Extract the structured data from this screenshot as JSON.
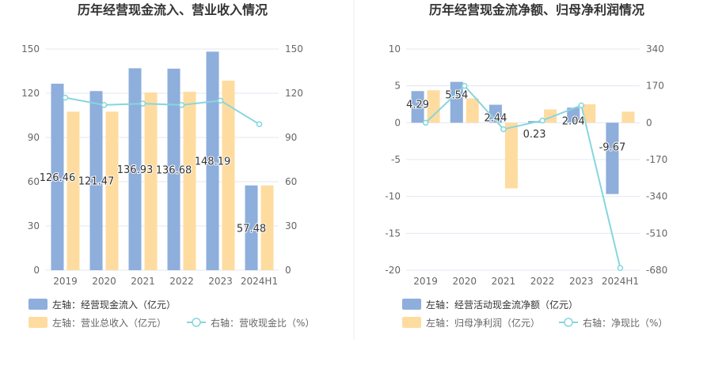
{
  "colors": {
    "bar_left": "#8eaedc",
    "bar_right": "#fedca0",
    "line": "#86d6de",
    "grid": "#e3e7f2",
    "axis_text": "#666666",
    "title": "#333333",
    "divider": "#eeeeee"
  },
  "chart_data": [
    {
      "type": "bar",
      "title": "历年经营现金流入、营业收入情况",
      "categories": [
        "2019",
        "2020",
        "2021",
        "2022",
        "2023",
        "2024H1"
      ],
      "left_axis": {
        "ticks": [
          "0",
          "30",
          "60",
          "90",
          "120",
          "150"
        ],
        "ylim": [
          0,
          150
        ]
      },
      "right_axis": {
        "ticks": [
          "0",
          "30",
          "60",
          "90",
          "120",
          "150"
        ],
        "ylim": [
          0,
          150
        ]
      },
      "series": [
        {
          "name": "左轴：经营现金流入（亿元）",
          "type": "bar",
          "axis": "left",
          "values": [
            126.46,
            121.47,
            136.93,
            136.68,
            148.19,
            57.48
          ],
          "labels": [
            "126.46",
            "121.47",
            "136.93",
            "136.68",
            "148.19",
            "57.48"
          ]
        },
        {
          "name": "左轴：营业总收入（亿元）",
          "type": "bar",
          "axis": "left",
          "values": [
            107.5,
            107.5,
            120.5,
            121.0,
            128.5,
            57.5
          ]
        },
        {
          "name": "右轴：营收现金比（%）",
          "type": "line",
          "axis": "right",
          "values": [
            117,
            112,
            113,
            112,
            115,
            99
          ]
        }
      ],
      "grid": true,
      "legend_position": "bottom-left"
    },
    {
      "type": "bar",
      "title": "历年经营现金流净额、归母净利润情况",
      "categories": [
        "2019",
        "2020",
        "2021",
        "2022",
        "2023",
        "2024H1"
      ],
      "left_axis": {
        "ticks": [
          "-20",
          "-15",
          "-10",
          "-5",
          "0",
          "5",
          "10"
        ],
        "ylim": [
          -20,
          10
        ]
      },
      "right_axis": {
        "ticks": [
          "-680",
          "-510",
          "-340",
          "-170",
          "0",
          "170",
          "340"
        ],
        "ylim": [
          -680,
          340
        ]
      },
      "series": [
        {
          "name": "左轴：经营活动现金流净额（亿元）",
          "type": "bar",
          "axis": "left",
          "values": [
            4.29,
            5.54,
            2.44,
            0.23,
            2.04,
            -9.67
          ],
          "labels": [
            "4.29",
            "5.54",
            "2.44",
            "0.23",
            "2.04",
            "-9.67"
          ]
        },
        {
          "name": "左轴：归母净利润（亿元）",
          "type": "bar",
          "axis": "left",
          "values": [
            4.4,
            3.3,
            -8.9,
            1.8,
            2.5,
            1.5
          ]
        },
        {
          "name": "右轴：净现比（%）",
          "type": "line",
          "axis": "right",
          "values": [
            0,
            170,
            -30,
            10,
            80,
            -670
          ]
        }
      ],
      "grid": true,
      "legend_position": "bottom-left"
    }
  ]
}
